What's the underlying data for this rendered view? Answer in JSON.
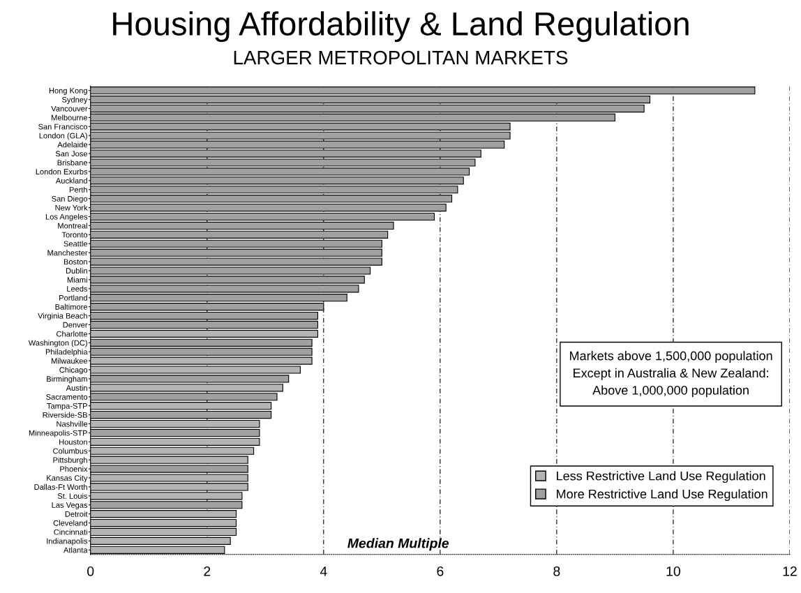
{
  "chart_data": {
    "type": "bar",
    "orientation": "horizontal",
    "title": "Housing Affordability & Land Regulation",
    "subtitle": "LARGER METROPOLITAN MARKETS",
    "xlabel": "Median Multiple",
    "categories": [
      "Hong Kong",
      "Sydney",
      "Vancouver",
      "Melbourne",
      "San Francisco",
      "London (GLA)",
      "Adelaide",
      "San Jose",
      "Brisbane",
      "London Exurbs",
      "Auckland",
      "Perth",
      "San Diego",
      "New York",
      "Los Angeles",
      "Montreal",
      "Toronto",
      "Seattle",
      "Manchester",
      "Boston",
      "Dublin",
      "Miami",
      "Leeds",
      "Portland",
      "Baltimore",
      "Virginia Beach",
      "Denver",
      "Charlotte",
      "Washington (DC)",
      "Philadelphia",
      "Milwaukee",
      "Chicago",
      "Birmingham",
      "Austin",
      "Sacramento",
      "Tampa-STP",
      "Riverside-SB",
      "Nashville",
      "Minneapolis-STP",
      "Houston",
      "Columbus",
      "Pittsburgh",
      "Phoenix",
      "Kansas City",
      "Dallas-Ft Worth",
      "St. Louis",
      "Las Vegas",
      "Detroit",
      "Cleveland",
      "Cincinnati",
      "Indianapolis",
      "Atlanta"
    ],
    "series": [
      {
        "name": "Less Restrictive Land Use Regulation",
        "color": "#b4b4b4",
        "values": [
          null,
          null,
          null,
          null,
          null,
          null,
          null,
          null,
          null,
          null,
          null,
          null,
          null,
          null,
          null,
          null,
          null,
          null,
          null,
          null,
          null,
          null,
          null,
          null,
          null,
          null,
          null,
          3.9,
          null,
          null,
          3.8,
          3.6,
          null,
          3.3,
          null,
          3.1,
          null,
          2.9,
          null,
          2.9,
          2.8,
          2.7,
          null,
          2.7,
          2.7,
          2.6,
          null,
          2.5,
          2.5,
          2.5,
          2.4,
          2.3
        ]
      },
      {
        "name": "More Restrictive Land Use Regulation",
        "color": "#a0a0a0",
        "values": [
          11.4,
          9.6,
          9.5,
          9.0,
          7.2,
          7.2,
          7.1,
          6.7,
          6.6,
          6.5,
          6.4,
          6.3,
          6.2,
          6.1,
          5.9,
          5.2,
          5.1,
          5.0,
          5.0,
          5.0,
          4.8,
          4.7,
          4.6,
          4.4,
          4.0,
          3.9,
          3.9,
          null,
          3.8,
          3.8,
          null,
          null,
          3.4,
          null,
          3.2,
          null,
          3.1,
          null,
          2.9,
          null,
          null,
          null,
          2.7,
          null,
          null,
          null,
          2.6,
          null,
          null,
          null,
          null,
          null
        ]
      }
    ],
    "xlim": [
      0,
      12
    ],
    "xticks": [
      0,
      2,
      4,
      6,
      8,
      10,
      12
    ],
    "grid": "x",
    "legend": "bottom right",
    "annotations": [
      "Markets above 1,500,000 population\nExcept in Australia & New Zealand:\nAbove 1,000,000 population"
    ]
  }
}
